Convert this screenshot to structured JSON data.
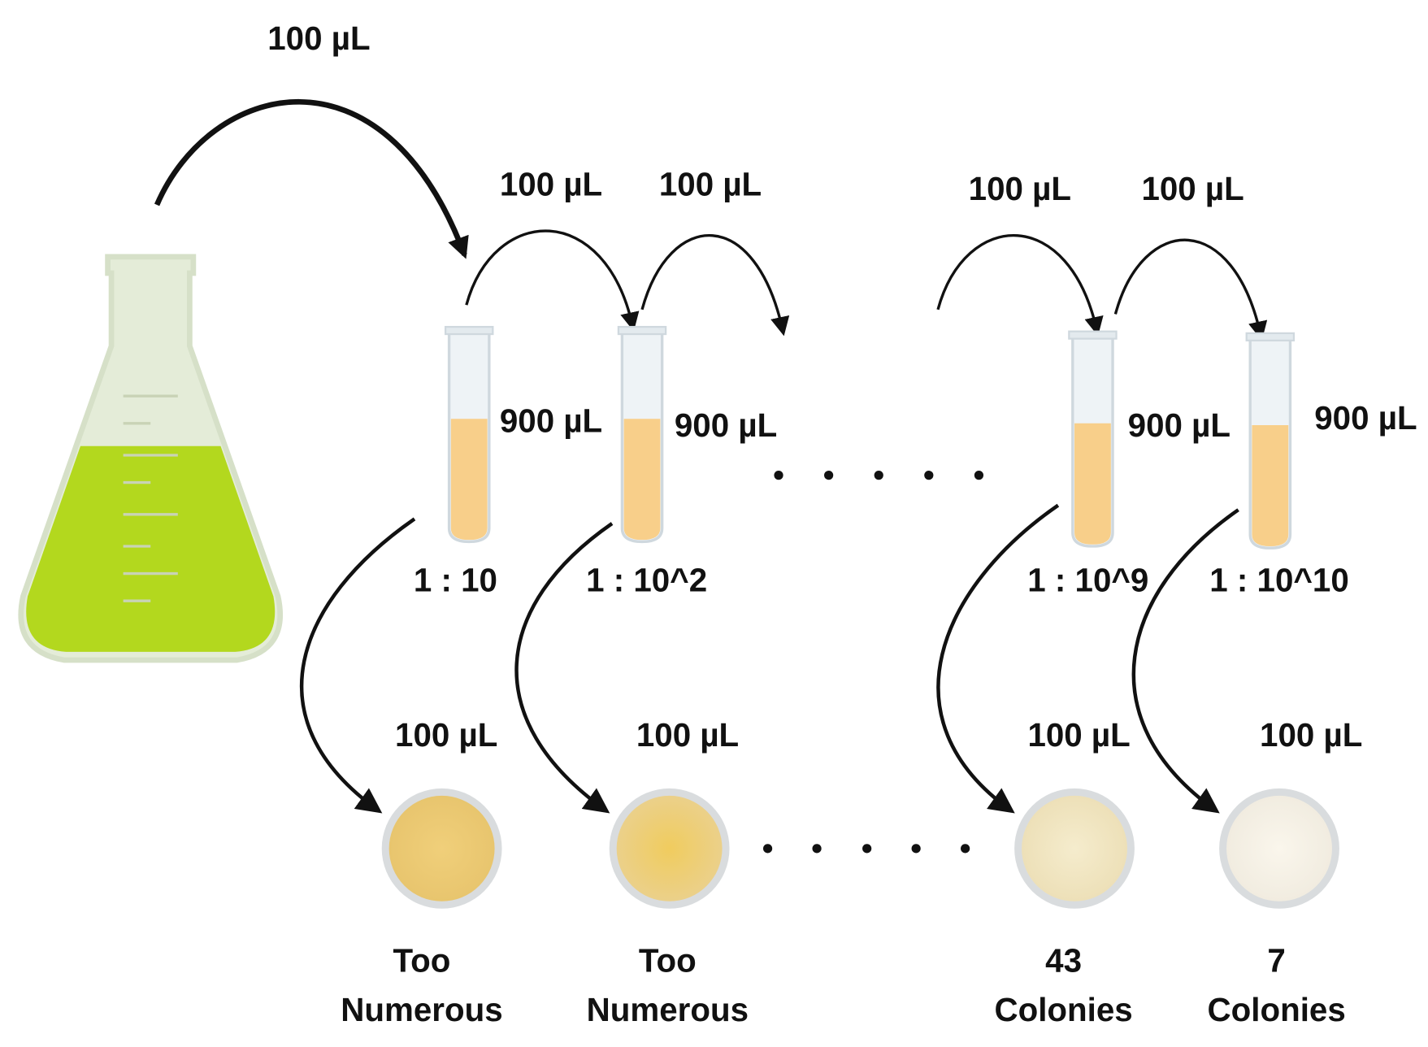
{
  "source_transfer": "100 µL",
  "transfers": [
    "100 µL",
    "100 µL",
    "100 µL",
    "100 µL"
  ],
  "tubes": [
    {
      "volume": "900 µL",
      "dilution": "1 : 10"
    },
    {
      "volume": "900 µL",
      "dilution": "1 : 10^2"
    },
    {
      "volume": "900 µL",
      "dilution": "1 : 10^9"
    },
    {
      "volume": "900 µL",
      "dilution": "1 : 10^10"
    }
  ],
  "plates": [
    {
      "volume": "100 µL",
      "result": [
        "Too",
        "Numerous"
      ]
    },
    {
      "volume": "100 µL",
      "result": [
        "Too",
        "Numerous"
      ]
    },
    {
      "volume": "100 µL",
      "result": [
        "43",
        "Colonies"
      ]
    },
    {
      "volume": "100 µL",
      "result": [
        "7",
        "Colonies"
      ]
    }
  ]
}
